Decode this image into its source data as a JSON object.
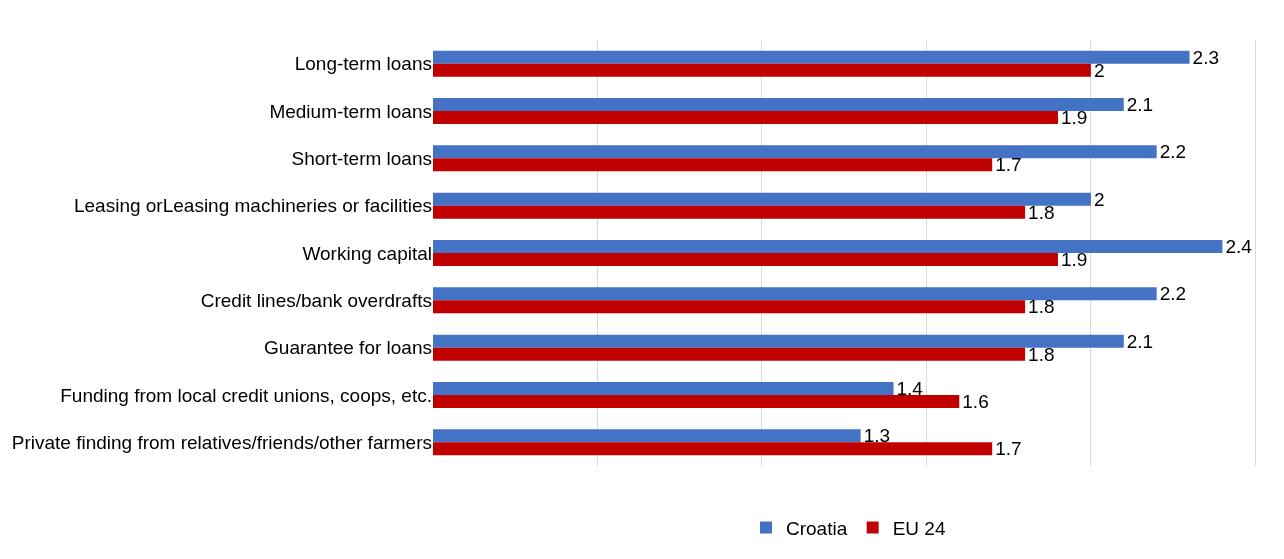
{
  "chart_data": {
    "type": "bar",
    "orientation": "horizontal",
    "categories": [
      "Long-term loans",
      "Medium-term loans",
      "Short-term loans",
      "Leasing orLeasing machineries or facilities",
      "Working capital",
      "Credit lines/bank overdrafts",
      "Guarantee for loans",
      "Funding from local credit unions, coops, etc.",
      "Private finding from relatives/friends/other farmers"
    ],
    "series": [
      {
        "name": "Croatia",
        "color": "#4472c4",
        "values": [
          2.3,
          2.1,
          2.2,
          2,
          2.4,
          2.2,
          2.1,
          1.4,
          1.3
        ]
      },
      {
        "name": "EU 24",
        "color": "#c00000",
        "values": [
          2,
          1.9,
          1.7,
          1.8,
          1.9,
          1.8,
          1.8,
          1.6,
          1.7
        ]
      }
    ],
    "tick_labels": "y",
    "grid": "x",
    "legend": "bottom",
    "data_labels": true
  }
}
